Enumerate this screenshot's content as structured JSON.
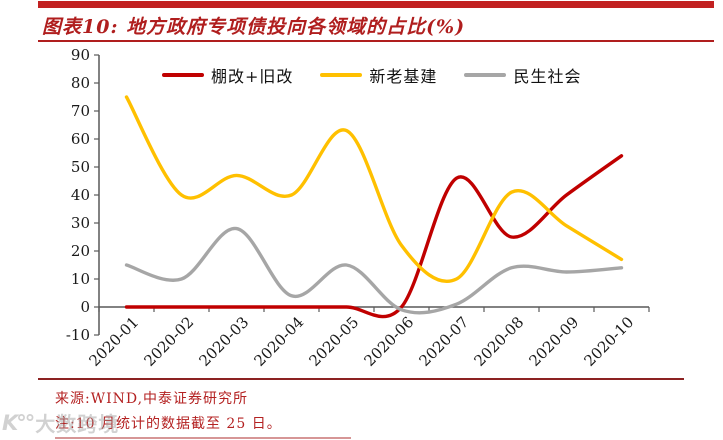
{
  "header": {
    "title": "图表10: 地方政府专项债投向各领域的占比(%)"
  },
  "chart_data": {
    "type": "line",
    "smooth": true,
    "grid": false,
    "legend_position": "top",
    "categories": [
      "2020-01",
      "2020-02",
      "2020-03",
      "2020-04",
      "2020-05",
      "2020-06",
      "2020-07",
      "2020-08",
      "2020-09",
      "2020-10"
    ],
    "series": [
      {
        "name": "棚改+旧改",
        "color": "#C00000",
        "values": [
          0,
          0,
          0,
          0,
          0,
          0,
          46,
          25,
          40,
          54
        ]
      },
      {
        "name": "新老基建",
        "color": "#FFC000",
        "values": [
          75,
          40,
          47,
          40,
          63,
          22,
          10,
          41,
          29,
          17
        ]
      },
      {
        "name": "民生社会",
        "color": "#A6A6A6",
        "values": [
          15,
          10,
          28,
          4,
          15,
          -1,
          1,
          14,
          12.5,
          14
        ]
      }
    ],
    "ylim": [
      -10,
      90
    ],
    "ytick_step": 10,
    "xlabel": "",
    "ylabel": "",
    "axis_color": "#595959"
  },
  "footer": {
    "source": "来源:WIND,中泰证券研究所",
    "note": "注:10 月统计的数据截至 25 日。"
  },
  "watermark": {
    "logo": "K°°",
    "text": "大数跨境"
  },
  "colors": {
    "accent": "#B01E1E",
    "top_bar": "#C22121",
    "separator": "#8C2222"
  }
}
